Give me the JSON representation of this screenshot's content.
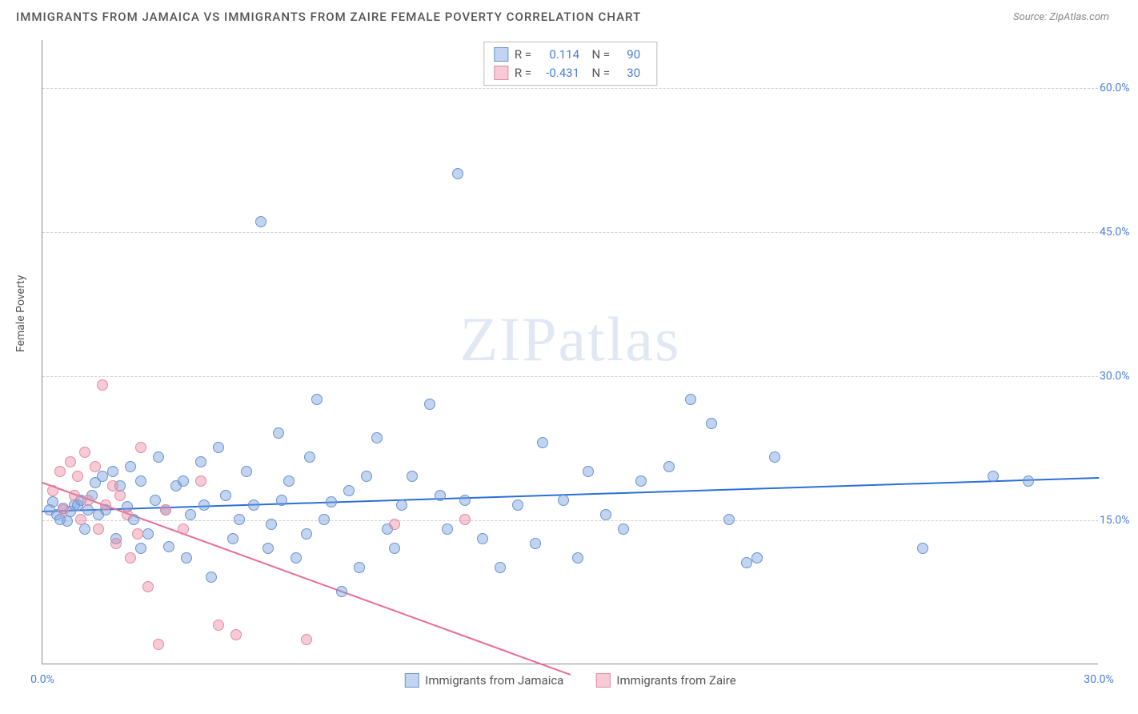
{
  "header": {
    "title": "IMMIGRANTS FROM JAMAICA VS IMMIGRANTS FROM ZAIRE FEMALE POVERTY CORRELATION CHART",
    "source": "Source: ZipAtlas.com"
  },
  "ylabel": "Female Poverty",
  "watermark": {
    "bold": "ZIP",
    "rest": "atlas"
  },
  "chart": {
    "type": "scatter",
    "x_range": [
      0,
      30
    ],
    "y_range": [
      0,
      65
    ],
    "y_ticks": [
      15,
      30,
      45,
      60
    ],
    "y_tick_labels": [
      "15.0%",
      "30.0%",
      "45.0%",
      "60.0%"
    ],
    "x_ticks": [
      0,
      30
    ],
    "x_tick_labels": [
      "0.0%",
      "30.0%"
    ],
    "grid_color": "#d0d0d0",
    "background_color": "#ffffff",
    "axis_color": "#888888",
    "tick_label_color": "#4a7fd6",
    "label_fontsize": 14,
    "series": [
      {
        "name": "Immigrants from Jamaica",
        "fill_color": "rgba(120,160,220,0.45)",
        "stroke_color": "#6a95d0",
        "line_color": "#2b6fd6",
        "marker_radius": 7,
        "r": "0.114",
        "n": "90",
        "trend": {
          "x1": 0,
          "y1": 16.0,
          "x2": 30,
          "y2": 19.5
        },
        "points": [
          [
            0.2,
            16.0
          ],
          [
            0.3,
            16.8
          ],
          [
            0.4,
            15.5
          ],
          [
            0.5,
            15.0
          ],
          [
            0.6,
            16.2
          ],
          [
            0.7,
            14.8
          ],
          [
            0.8,
            15.8
          ],
          [
            0.9,
            16.5
          ],
          [
            1.0,
            16.5
          ],
          [
            1.1,
            17.0
          ],
          [
            1.2,
            14.0
          ],
          [
            1.3,
            16.0
          ],
          [
            1.4,
            17.5
          ],
          [
            1.5,
            18.8
          ],
          [
            1.6,
            15.5
          ],
          [
            1.7,
            19.5
          ],
          [
            1.8,
            16.0
          ],
          [
            2.0,
            20.0
          ],
          [
            2.1,
            13.0
          ],
          [
            2.2,
            18.5
          ],
          [
            2.4,
            16.3
          ],
          [
            2.5,
            20.5
          ],
          [
            2.6,
            15.0
          ],
          [
            2.8,
            19.0
          ],
          [
            2.8,
            12.0
          ],
          [
            3.0,
            13.5
          ],
          [
            3.2,
            17.0
          ],
          [
            3.3,
            21.5
          ],
          [
            3.5,
            16.0
          ],
          [
            3.6,
            12.2
          ],
          [
            3.8,
            18.5
          ],
          [
            4.0,
            19.0
          ],
          [
            4.1,
            11.0
          ],
          [
            4.2,
            15.5
          ],
          [
            4.5,
            21.0
          ],
          [
            4.6,
            16.5
          ],
          [
            4.8,
            9.0
          ],
          [
            5.0,
            22.5
          ],
          [
            5.2,
            17.5
          ],
          [
            5.4,
            13.0
          ],
          [
            5.6,
            15.0
          ],
          [
            5.8,
            20.0
          ],
          [
            6.0,
            16.5
          ],
          [
            6.2,
            46.0
          ],
          [
            6.4,
            12.0
          ],
          [
            6.5,
            14.5
          ],
          [
            6.7,
            24.0
          ],
          [
            6.8,
            17.0
          ],
          [
            7.0,
            19.0
          ],
          [
            7.2,
            11.0
          ],
          [
            7.5,
            13.5
          ],
          [
            7.6,
            21.5
          ],
          [
            7.8,
            27.5
          ],
          [
            8.0,
            15.0
          ],
          [
            8.2,
            16.8
          ],
          [
            8.5,
            7.5
          ],
          [
            8.7,
            18.0
          ],
          [
            9.0,
            10.0
          ],
          [
            9.2,
            19.5
          ],
          [
            9.5,
            23.5
          ],
          [
            9.8,
            14.0
          ],
          [
            10.0,
            12.0
          ],
          [
            10.2,
            16.5
          ],
          [
            10.5,
            19.5
          ],
          [
            11.0,
            27.0
          ],
          [
            11.3,
            17.5
          ],
          [
            11.5,
            14.0
          ],
          [
            11.8,
            51.0
          ],
          [
            12.0,
            17.0
          ],
          [
            12.5,
            13.0
          ],
          [
            13.0,
            10.0
          ],
          [
            13.5,
            16.5
          ],
          [
            14.0,
            12.5
          ],
          [
            14.2,
            23.0
          ],
          [
            14.8,
            17.0
          ],
          [
            15.2,
            11.0
          ],
          [
            15.5,
            20.0
          ],
          [
            16.0,
            15.5
          ],
          [
            16.5,
            14.0
          ],
          [
            17.0,
            19.0
          ],
          [
            17.8,
            20.5
          ],
          [
            18.4,
            27.5
          ],
          [
            19.0,
            25.0
          ],
          [
            19.5,
            15.0
          ],
          [
            20.0,
            10.5
          ],
          [
            20.3,
            11.0
          ],
          [
            20.8,
            21.5
          ],
          [
            25.0,
            12.0
          ],
          [
            27.0,
            19.5
          ],
          [
            28.0,
            19.0
          ]
        ]
      },
      {
        "name": "Immigrants from Zaire",
        "fill_color": "rgba(235,140,165,0.45)",
        "stroke_color": "#e38aa5",
        "line_color": "#e86c95",
        "marker_radius": 7,
        "r": "-0.431",
        "n": "30",
        "trend": {
          "x1": 0,
          "y1": 19.0,
          "x2": 15,
          "y2": -1.0
        },
        "points": [
          [
            0.3,
            18.0
          ],
          [
            0.5,
            20.0
          ],
          [
            0.6,
            16.0
          ],
          [
            0.8,
            21.0
          ],
          [
            0.9,
            17.5
          ],
          [
            1.0,
            19.5
          ],
          [
            1.1,
            15.0
          ],
          [
            1.2,
            22.0
          ],
          [
            1.3,
            17.0
          ],
          [
            1.5,
            20.5
          ],
          [
            1.6,
            14.0
          ],
          [
            1.7,
            29.0
          ],
          [
            1.8,
            16.5
          ],
          [
            2.0,
            18.5
          ],
          [
            2.1,
            12.5
          ],
          [
            2.2,
            17.5
          ],
          [
            2.4,
            15.5
          ],
          [
            2.5,
            11.0
          ],
          [
            2.7,
            13.5
          ],
          [
            2.8,
            22.5
          ],
          [
            3.0,
            8.0
          ],
          [
            3.3,
            2.0
          ],
          [
            3.5,
            16.0
          ],
          [
            4.0,
            14.0
          ],
          [
            4.5,
            19.0
          ],
          [
            5.0,
            4.0
          ],
          [
            5.5,
            3.0
          ],
          [
            7.5,
            2.5
          ],
          [
            10.0,
            14.5
          ],
          [
            12.0,
            15.0
          ]
        ]
      }
    ]
  },
  "legend_bottom": {
    "items": [
      "Immigrants from Jamaica",
      "Immigrants from Zaire"
    ]
  }
}
